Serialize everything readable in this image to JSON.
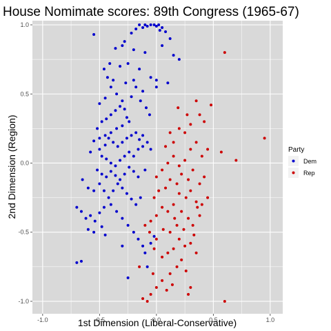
{
  "chart_data": {
    "type": "scatter",
    "title": "House Nomimate scores: 89th Congress (1965-67)",
    "xlabel": "1st Dimension (Liberal-Conservative)",
    "ylabel": "2nd Dimension (Region)",
    "xlim": [
      -1.09,
      1.11
    ],
    "ylim": [
      -1.09,
      1.03
    ],
    "x_ticks": [
      -1.0,
      -0.5,
      0.0,
      0.5,
      1.0
    ],
    "x_tick_labels": [
      "-1.0",
      "-0.5",
      "0.0",
      "0.5",
      "1.0"
    ],
    "y_ticks": [
      -1.0,
      -0.5,
      0.0,
      0.5,
      1.0
    ],
    "y_tick_labels": [
      "-1.0",
      "-0.5",
      "0.0",
      "0.5",
      "1.0"
    ],
    "grid": true,
    "panel_background": "#d9d9d9",
    "grid_color": "#ffffff",
    "legend": {
      "title": "Party",
      "position": "right",
      "entries": [
        {
          "label": "Dem",
          "color": "#0000cd"
        },
        {
          "label": "Rep",
          "color": "#cd0000"
        }
      ]
    },
    "series": [
      {
        "name": "Dem",
        "color": "#0000cd",
        "points": [
          [
            -0.15,
            1.0
          ],
          [
            -0.1,
            1.0
          ],
          [
            -0.05,
            1.0
          ],
          [
            -0.02,
            1.0
          ],
          [
            0.0,
            0.99
          ],
          [
            0.02,
            1.0
          ],
          [
            -0.08,
            0.99
          ],
          [
            -0.12,
            0.98
          ],
          [
            0.05,
            0.98
          ],
          [
            -0.18,
            0.97
          ],
          [
            0.03,
            0.96
          ],
          [
            0.08,
            0.95
          ],
          [
            -0.22,
            0.94
          ],
          [
            0.12,
            0.9
          ],
          [
            -0.55,
            0.93
          ],
          [
            -0.3,
            0.85
          ],
          [
            -0.36,
            0.83
          ],
          [
            -0.2,
            0.82
          ],
          [
            -0.1,
            0.8
          ],
          [
            0.05,
            0.85
          ],
          [
            0.15,
            0.78
          ],
          [
            0.2,
            0.75
          ],
          [
            -0.28,
            0.88
          ],
          [
            -0.25,
            0.72
          ],
          [
            -0.32,
            0.7
          ],
          [
            -0.15,
            0.68
          ],
          [
            -0.05,
            0.62
          ],
          [
            0.0,
            0.6
          ],
          [
            0.1,
            0.58
          ],
          [
            -0.38,
            0.6
          ],
          [
            -0.4,
            0.55
          ],
          [
            -0.35,
            0.5
          ],
          [
            -0.45,
            0.47
          ],
          [
            -0.5,
            0.43
          ],
          [
            -0.3,
            0.45
          ],
          [
            -0.22,
            0.48
          ],
          [
            -0.18,
            0.55
          ],
          [
            -0.12,
            0.52
          ],
          [
            0.0,
            0.55
          ],
          [
            -0.48,
            0.3
          ],
          [
            -0.44,
            0.32
          ],
          [
            -0.4,
            0.35
          ],
          [
            -0.36,
            0.38
          ],
          [
            -0.32,
            0.41
          ],
          [
            -0.28,
            0.39
          ],
          [
            -0.26,
            0.33
          ],
          [
            -0.24,
            0.3
          ],
          [
            -0.3,
            0.27
          ],
          [
            -0.35,
            0.25
          ],
          [
            -0.4,
            0.22
          ],
          [
            -0.45,
            0.2
          ],
          [
            -0.5,
            0.18
          ],
          [
            -0.52,
            0.25
          ],
          [
            -0.55,
            0.16
          ],
          [
            -0.58,
            0.08
          ],
          [
            -0.5,
            0.1
          ],
          [
            -0.45,
            0.13
          ],
          [
            -0.42,
            0.18
          ],
          [
            -0.38,
            0.15
          ],
          [
            -0.34,
            0.12
          ],
          [
            -0.3,
            0.15
          ],
          [
            -0.26,
            0.18
          ],
          [
            -0.22,
            0.2
          ],
          [
            -0.18,
            0.22
          ],
          [
            -0.15,
            0.17
          ],
          [
            -0.12,
            0.2
          ],
          [
            -0.08,
            0.15
          ],
          [
            -0.05,
            0.1
          ],
          [
            -0.48,
            0.05
          ],
          [
            -0.44,
            0.03
          ],
          [
            -0.4,
            0.0
          ],
          [
            -0.36,
            -0.02
          ],
          [
            -0.32,
            0.02
          ],
          [
            -0.28,
            0.05
          ],
          [
            -0.24,
            0.08
          ],
          [
            -0.2,
            0.05
          ],
          [
            -0.16,
            0.1
          ],
          [
            -0.12,
            0.12
          ],
          [
            -0.52,
            -0.05
          ],
          [
            -0.48,
            -0.08
          ],
          [
            -0.44,
            -0.1
          ],
          [
            -0.4,
            -0.06
          ],
          [
            -0.36,
            -0.09
          ],
          [
            -0.32,
            -0.12
          ],
          [
            -0.28,
            -0.08
          ],
          [
            -0.24,
            -0.03
          ],
          [
            -0.2,
            -0.06
          ],
          [
            -0.16,
            -0.1
          ],
          [
            -0.1,
            -0.05
          ],
          [
            -0.65,
            -0.12
          ],
          [
            -0.6,
            -0.18
          ],
          [
            -0.55,
            -0.2
          ],
          [
            -0.5,
            -0.15
          ],
          [
            -0.46,
            -0.2
          ],
          [
            -0.42,
            -0.25
          ],
          [
            -0.38,
            -0.2
          ],
          [
            -0.34,
            -0.15
          ],
          [
            -0.3,
            -0.18
          ],
          [
            -0.26,
            -0.22
          ],
          [
            -0.22,
            -0.26
          ],
          [
            -0.18,
            -0.3
          ],
          [
            -0.14,
            -0.25
          ],
          [
            -0.7,
            -0.32
          ],
          [
            -0.66,
            -0.35
          ],
          [
            -0.62,
            -0.4
          ],
          [
            -0.58,
            -0.38
          ],
          [
            -0.54,
            -0.42
          ],
          [
            -0.5,
            -0.36
          ],
          [
            -0.46,
            -0.32
          ],
          [
            -0.4,
            -0.3
          ],
          [
            -0.35,
            -0.35
          ],
          [
            -0.3,
            -0.4
          ],
          [
            -0.25,
            -0.45
          ],
          [
            -0.6,
            -0.48
          ],
          [
            -0.55,
            -0.5
          ],
          [
            -0.48,
            -0.46
          ],
          [
            -0.45,
            -0.52
          ],
          [
            -0.2,
            -0.5
          ],
          [
            -0.16,
            -0.55
          ],
          [
            -0.12,
            -0.6
          ],
          [
            -0.7,
            -0.72
          ],
          [
            -0.66,
            -0.71
          ],
          [
            -0.3,
            -0.6
          ],
          [
            -0.08,
            -0.75
          ],
          [
            -0.25,
            -0.83
          ],
          [
            -0.1,
            -0.65
          ],
          [
            -0.05,
            -0.58
          ],
          [
            -0.02,
            -0.53
          ],
          [
            -0.43,
            0.62
          ],
          [
            -0.46,
            0.68
          ],
          [
            -0.41,
            0.72
          ],
          [
            -0.2,
            0.6
          ],
          [
            -0.14,
            0.45
          ],
          [
            -0.09,
            0.4
          ],
          [
            -0.06,
            0.35
          ],
          [
            -0.27,
            0.58
          ]
        ]
      },
      {
        "name": "Rep",
        "color": "#cd0000",
        "points": [
          [
            0.6,
            0.8
          ],
          [
            0.35,
            0.45
          ],
          [
            0.48,
            0.42
          ],
          [
            0.95,
            0.18
          ],
          [
            0.7,
            0.02
          ],
          [
            0.57,
            0.08
          ],
          [
            0.38,
            0.35
          ],
          [
            0.42,
            0.3
          ],
          [
            0.3,
            0.28
          ],
          [
            0.25,
            0.22
          ],
          [
            0.2,
            0.25
          ],
          [
            0.15,
            0.15
          ],
          [
            0.08,
            0.12
          ],
          [
            0.35,
            0.15
          ],
          [
            0.4,
            0.05
          ],
          [
            0.45,
            0.1
          ],
          [
            0.3,
            0.1
          ],
          [
            0.25,
            0.02
          ],
          [
            0.2,
            -0.02
          ],
          [
            0.15,
            0.05
          ],
          [
            0.1,
            0.0
          ],
          [
            0.05,
            -0.05
          ],
          [
            0.0,
            -0.1
          ],
          [
            0.22,
            -0.08
          ],
          [
            0.28,
            -0.12
          ],
          [
            0.32,
            -0.05
          ],
          [
            0.38,
            -0.15
          ],
          [
            0.42,
            -0.1
          ],
          [
            0.18,
            -0.15
          ],
          [
            0.12,
            -0.12
          ],
          [
            0.08,
            -0.18
          ],
          [
            0.02,
            -0.2
          ],
          [
            -0.02,
            -0.25
          ],
          [
            0.2,
            -0.22
          ],
          [
            0.26,
            -0.25
          ],
          [
            0.3,
            -0.2
          ],
          [
            0.35,
            -0.28
          ],
          [
            0.4,
            -0.3
          ],
          [
            0.45,
            -0.25
          ],
          [
            0.15,
            -0.3
          ],
          [
            0.1,
            -0.35
          ],
          [
            0.05,
            -0.32
          ],
          [
            0.0,
            -0.38
          ],
          [
            -0.05,
            -0.42
          ],
          [
            0.22,
            -0.35
          ],
          [
            0.28,
            -0.4
          ],
          [
            0.32,
            -0.45
          ],
          [
            0.38,
            -0.38
          ],
          [
            0.18,
            -0.45
          ],
          [
            0.12,
            -0.5
          ],
          [
            0.06,
            -0.48
          ],
          [
            0.0,
            -0.55
          ],
          [
            -0.06,
            -0.5
          ],
          [
            -0.1,
            -0.45
          ],
          [
            0.2,
            -0.55
          ],
          [
            0.25,
            -0.6
          ],
          [
            0.3,
            -0.58
          ],
          [
            0.15,
            -0.62
          ],
          [
            0.1,
            -0.65
          ],
          [
            0.05,
            -0.68
          ],
          [
            -0.02,
            -0.62
          ],
          [
            0.22,
            -0.7
          ],
          [
            0.18,
            -0.75
          ],
          [
            0.12,
            -0.8
          ],
          [
            0.05,
            -0.85
          ],
          [
            0.0,
            -0.9
          ],
          [
            -0.05,
            -0.95
          ],
          [
            -0.12,
            -0.98
          ],
          [
            -0.08,
            -1.0
          ],
          [
            0.3,
            -0.9
          ],
          [
            0.28,
            -0.95
          ],
          [
            0.6,
            -1.0
          ],
          [
            0.35,
            -0.65
          ],
          [
            0.26,
            -0.78
          ],
          [
            0.14,
            -0.88
          ],
          [
            0.09,
            -0.92
          ],
          [
            -0.03,
            -0.8
          ],
          [
            -0.15,
            -0.75
          ],
          [
            0.33,
            -0.52
          ],
          [
            0.24,
            -0.48
          ],
          [
            0.16,
            -0.4
          ],
          [
            0.36,
            -0.32
          ],
          [
            0.19,
            0.4
          ],
          [
            0.12,
            0.22
          ],
          [
            0.27,
            0.35
          ]
        ]
      }
    ]
  }
}
